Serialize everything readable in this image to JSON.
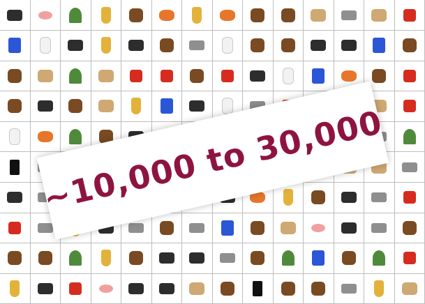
{
  "banner": {
    "text": "~10,000 to 30,000",
    "color": "#8e1440"
  },
  "grid": {
    "rows": [
      [
        "camera-icon",
        "hand-icon",
        "leaf-icon",
        "trumpet-icon",
        "pyramid-icon",
        "butterfly-icon",
        "vase-icon",
        "dumbbell-icon",
        "clock-icon",
        "padlock-icon",
        "antler-icon",
        "armadillo-icon",
        "map-icon",
        "axe-icon"
      ],
      [
        "jet-icon",
        "bottle-icon",
        "rabbit-icon",
        "banana-icon",
        "bathtub-icon",
        "bell-icon",
        "binoculars-icon",
        "bird-icon",
        "birdhouse-icon",
        "bear-icon",
        "cat-icon",
        "telephone-icon",
        "cup-icon",
        "drum-icon"
      ],
      [
        "muffin-icon",
        "dresser-icon",
        "cactus-icon",
        "sack-icon",
        "chair-icon",
        "chili-icon",
        "squirrel-icon",
        "hanger-icon",
        "pot-icon",
        "bone-icon",
        "pen-icon",
        "croissant-icon",
        "cane-icon",
        "lighter-icon"
      ],
      [
        "deer-icon",
        "lamp-icon",
        "dog-icon",
        "arch-icon",
        "glass-icon",
        "brush-icon",
        "headphones-icon",
        "egg-icon",
        "figurine-icon",
        "hydrant-icon",
        "object-icon",
        "object-icon",
        "bowl-icon",
        "gas-can-icon"
      ],
      [
        "ghost-icon",
        "gingerbread-icon",
        "plant-icon",
        "guitar-icon",
        "hair-dryer-icon",
        "object-icon",
        "object-icon",
        "object-icon",
        "object-icon",
        "object-icon",
        "object-icon",
        "object-icon",
        "object-icon",
        "beetle-icon"
      ],
      [
        "iron-icon",
        "object-icon",
        "object-icon",
        "object-icon",
        "object-icon",
        "object-icon",
        "object-icon",
        "object-icon",
        "object-icon",
        "jack-icon",
        "boot-icon",
        "tag-icon",
        "mushroom-icon",
        "object-icon"
      ],
      [
        "bin-icon",
        "object-icon",
        "object-icon",
        "object-icon",
        "object-icon",
        "cup-icon",
        "potato-icon",
        "penguin-icon",
        "foot-icon",
        "pineapple-icon",
        "pipe-icon",
        "plunger-icon",
        "propeller-icon",
        "takeout-box-icon"
      ],
      [
        "grill-icon",
        "figurine-icon",
        "duck-icon",
        "glove-icon",
        "tool-icon",
        "letter-s-icon",
        "saw-icon",
        "scale-icon",
        "seal-icon",
        "shell-icon",
        "shrimp-icon",
        "soap-icon",
        "wrench-icon",
        "starfish-icon"
      ],
      [
        "table-icon",
        "stick-icon",
        "tank-icon",
        "faucet-icon",
        "teddy-bear-icon",
        "telescope-icon",
        "tv-icon",
        "tombstone-icon",
        "totem-icon",
        "tree-icon",
        "fish-icon",
        "trowel-icon",
        "turtle-icon",
        "umbrella-icon"
      ],
      [
        "vase-icon",
        "handbag-icon",
        "vest-icon",
        "watermelon-icon",
        "headband-icon",
        "wetsuit-icon",
        "basket-icon",
        "bull-icon",
        "heel-icon",
        "stick-icon",
        "hammer-icon",
        "wrench-icon",
        "pliers-icon",
        "face-icon"
      ]
    ]
  }
}
